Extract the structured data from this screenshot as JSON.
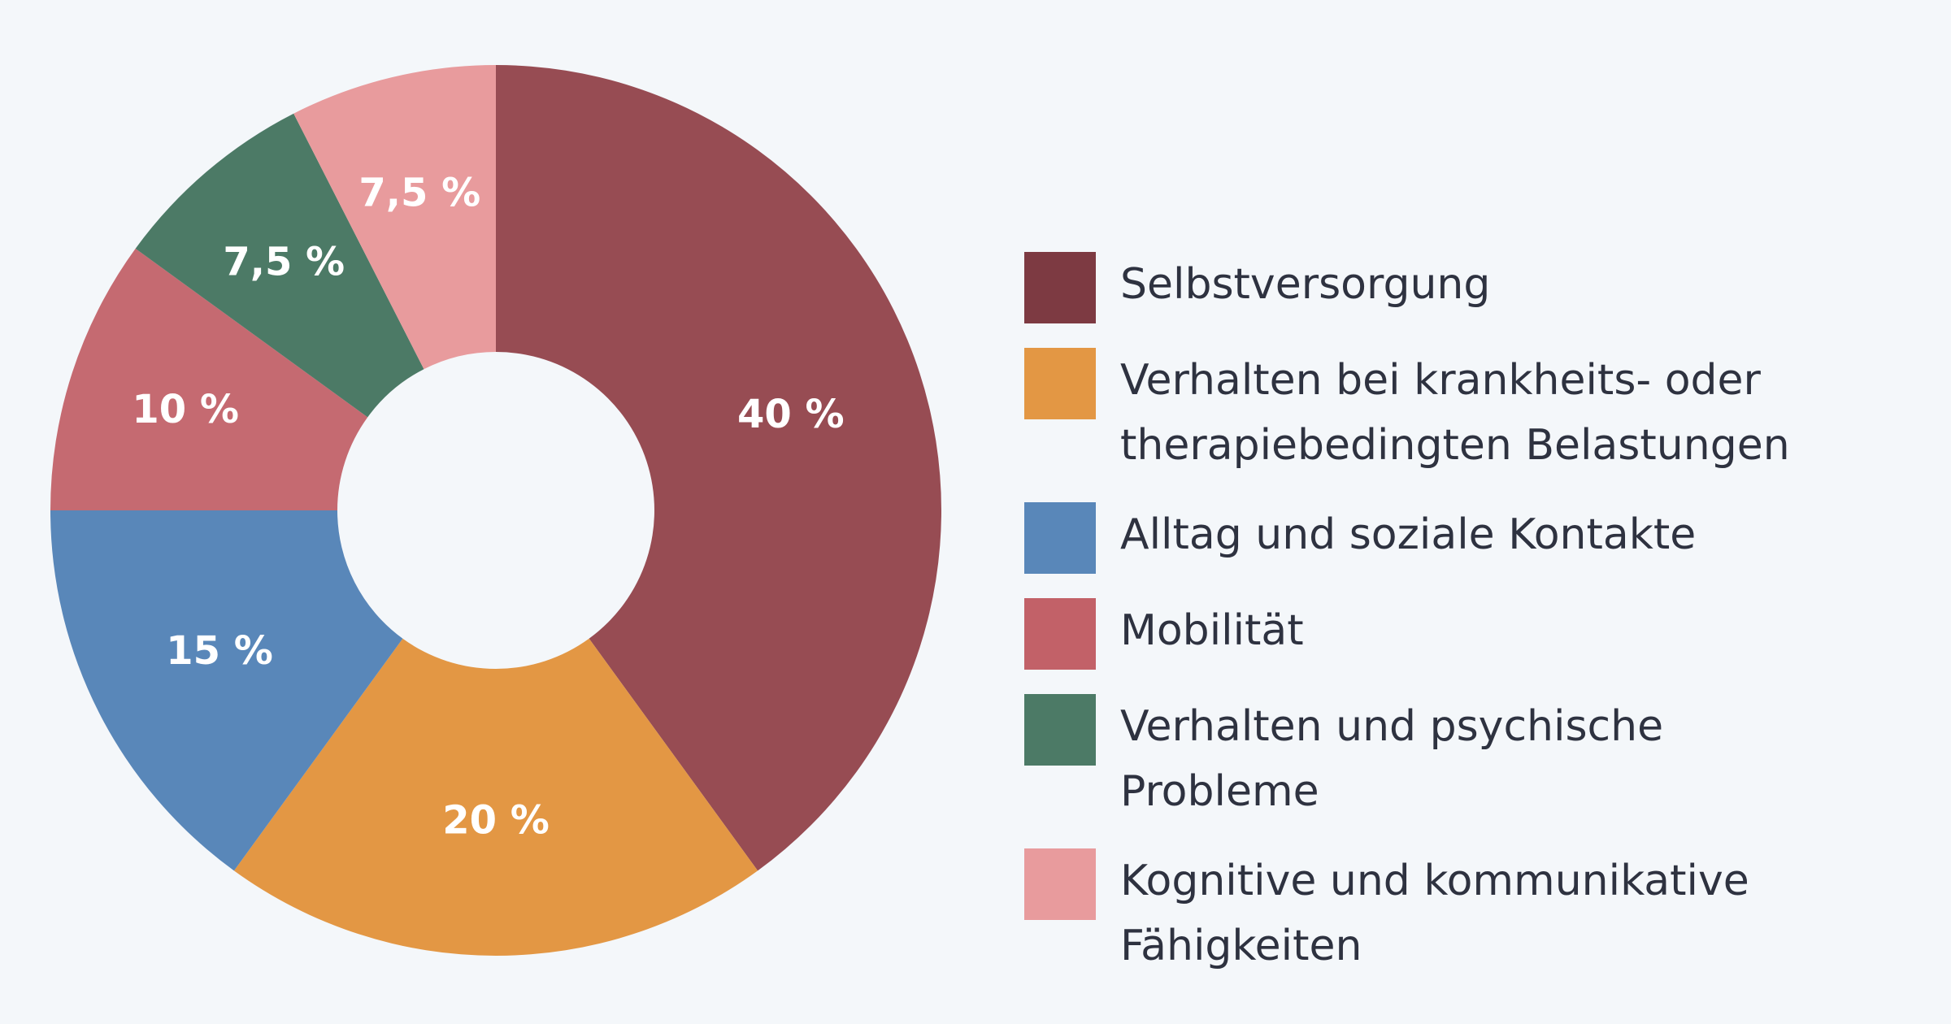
{
  "chart_data": {
    "type": "pie",
    "donut": true,
    "legend_position": "right",
    "slices": [
      {
        "name": "Selbstversorgung",
        "value": 40,
        "label": "40 %",
        "color": "#974c53"
      },
      {
        "name": "Verhalten bei krankheits- oder therapiebedingten Belastungen",
        "value": 20,
        "label": "20 %",
        "color": "#e39744"
      },
      {
        "name": "Alltag und soziale Kontakte",
        "value": 15,
        "label": "15 %",
        "color": "#5987b9"
      },
      {
        "name": "Mobilität",
        "value": 10,
        "label": "10 %",
        "color": "#c56a71"
      },
      {
        "name": "Verhalten und psychische Probleme",
        "value": 7.5,
        "label": "7,5 %",
        "color": "#4c7a66"
      },
      {
        "name": "Kognitive und kommunikative Fähigkeiten",
        "value": 7.5,
        "label": "7,5 %",
        "color": "#e89b9d"
      }
    ],
    "legend": [
      {
        "label": "Selbstversorgung",
        "color": "#7d3a42"
      },
      {
        "label": "Verhalten bei krankheits- oder therapiebedingten Belastungen",
        "color": "#e39744"
      },
      {
        "label": "Alltag und soziale Kontakte",
        "color": "#5987b9"
      },
      {
        "label": "Mobilität",
        "color": "#c26168"
      },
      {
        "label": "Verhalten und psychische Probleme",
        "color": "#4c7a66"
      },
      {
        "label": "Kognitive und kommunikative Fähigkeiten",
        "color": "#e89b9d"
      }
    ]
  }
}
